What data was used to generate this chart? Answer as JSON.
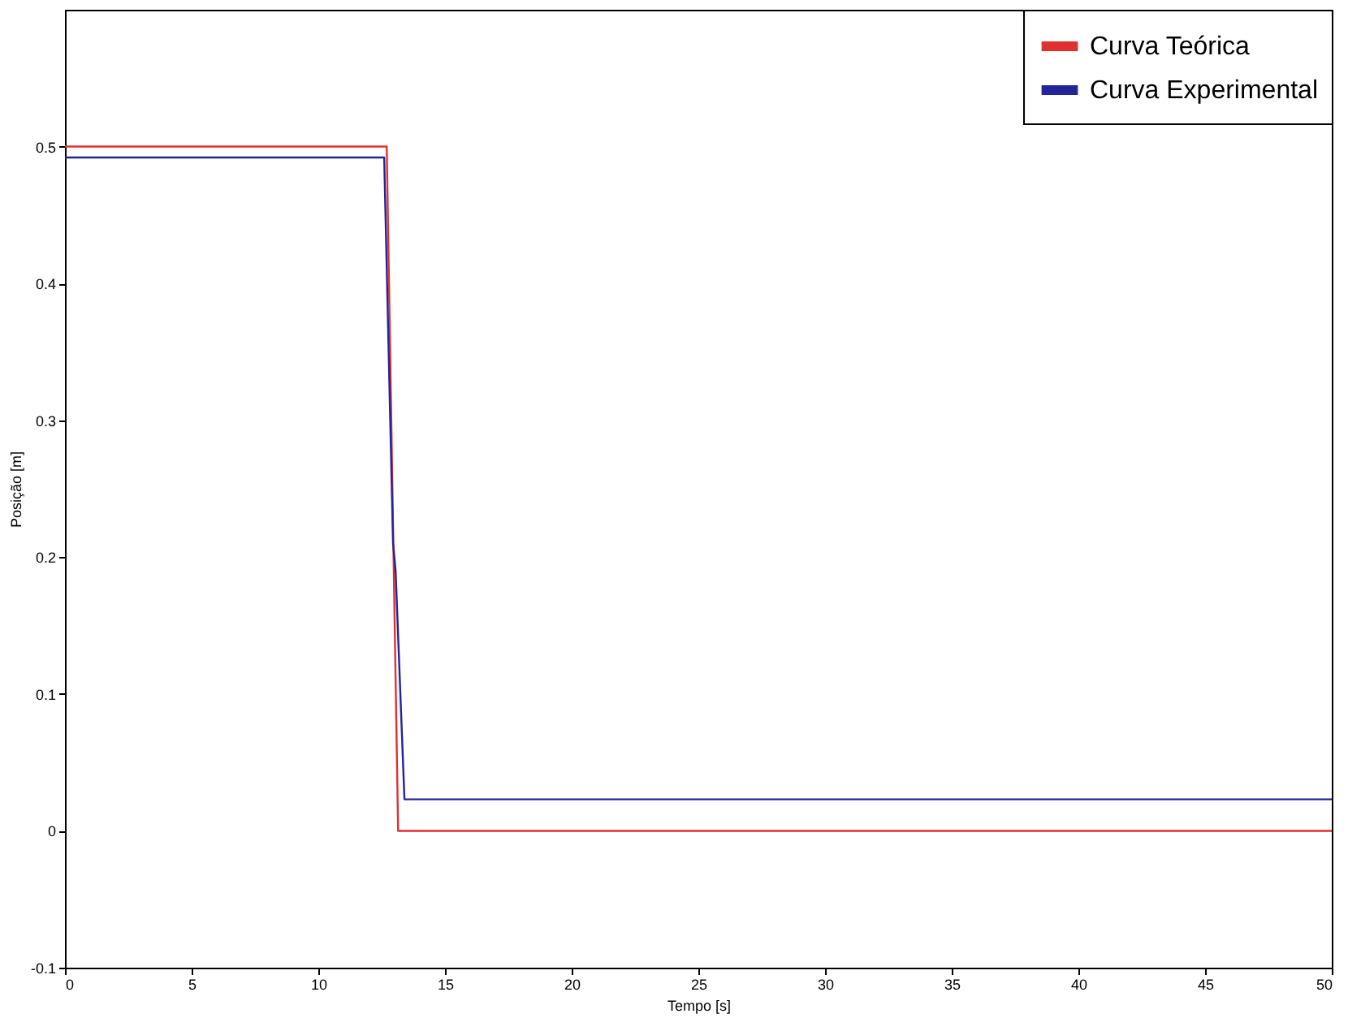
{
  "chart_data": {
    "type": "line",
    "xlabel": "Tempo [s]",
    "ylabel": "Posição [m]",
    "xlim": [
      0,
      50
    ],
    "ylim": [
      -0.1,
      0.6
    ],
    "xticks": [
      0,
      5,
      10,
      15,
      20,
      25,
      30,
      35,
      40,
      45,
      50
    ],
    "yticks": [
      -0.1,
      0,
      0.1,
      0.2,
      0.3,
      0.4,
      0.5
    ],
    "grid": false,
    "legend": "top right",
    "line_style": "solid",
    "marker": "none",
    "series": [
      {
        "name": "Curva Teórica",
        "color": "#e03030",
        "x": [
          0,
          12.7,
          13.15,
          50
        ],
        "values": [
          0.5,
          0.5,
          0,
          0
        ]
      },
      {
        "name": "Curva Experimental",
        "color": "#23239a",
        "x": [
          0,
          12.6,
          12.95,
          13.05,
          13.4,
          50
        ],
        "values": [
          0.492,
          0.492,
          0.21,
          0.19,
          0.023,
          0.023
        ]
      }
    ]
  }
}
